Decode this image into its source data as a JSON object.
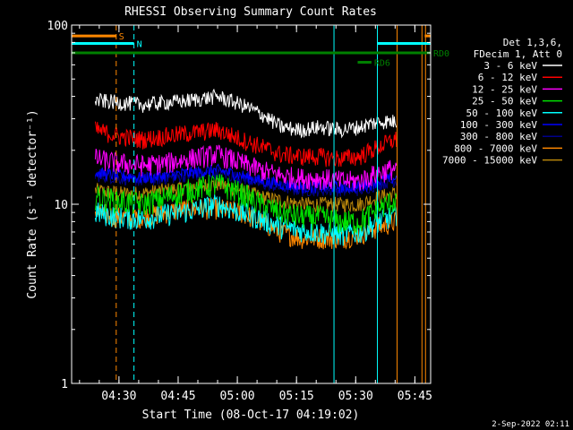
{
  "chart_data": {
    "type": "line",
    "title": "RHESSI Observing Summary Count Rates",
    "xlabel": "Start Time (08-Oct-17 04:19:02)",
    "ylabel": "Count Rate (s⁻¹ detector⁻¹)",
    "y_scale": "log",
    "ylim": [
      1,
      100
    ],
    "y_ticks": [
      {
        "value": 1,
        "label": "1"
      },
      {
        "value": 10,
        "label": "10"
      },
      {
        "value": 100,
        "label": "100"
      }
    ],
    "xlim_minutes": [
      0,
      91
    ],
    "x_ticks": [
      {
        "minute": 12,
        "label": "04:30"
      },
      {
        "minute": 27,
        "label": "04:45"
      },
      {
        "minute": 42,
        "label": "05:00"
      },
      {
        "minute": 57,
        "label": "05:15"
      },
      {
        "minute": 72,
        "label": "05:30"
      },
      {
        "minute": 87,
        "label": "05:45"
      }
    ],
    "x_minor_every_minutes": 5,
    "data_end_minute": 82.5,
    "legend_header": [
      "Det 1,3,6,",
      "FDecim 1, Att 0"
    ],
    "series": [
      {
        "name": "3 - 6 keV",
        "color": "#ffffff",
        "noise": 0.1,
        "points": [
          [
            6,
            38
          ],
          [
            12,
            37
          ],
          [
            18,
            36
          ],
          [
            24,
            37
          ],
          [
            30,
            38
          ],
          [
            37,
            40
          ],
          [
            43,
            36
          ],
          [
            48,
            32
          ],
          [
            53,
            27
          ],
          [
            58,
            26
          ],
          [
            63,
            27
          ],
          [
            68,
            26
          ],
          [
            73,
            27
          ],
          [
            78,
            29
          ],
          [
            82,
            29
          ]
        ]
      },
      {
        "name": "6 - 12 keV",
        "color": "#ff0000",
        "noise": 0.12,
        "points": [
          [
            6,
            26
          ],
          [
            12,
            24
          ],
          [
            18,
            23
          ],
          [
            24,
            24
          ],
          [
            30,
            25
          ],
          [
            37,
            26
          ],
          [
            43,
            23
          ],
          [
            48,
            21
          ],
          [
            53,
            19
          ],
          [
            58,
            18.5
          ],
          [
            63,
            18.5
          ],
          [
            68,
            18
          ],
          [
            73,
            18.5
          ],
          [
            78,
            21
          ],
          [
            82,
            23
          ]
        ]
      },
      {
        "name": "12 - 25 keV",
        "color": "#ff00ff",
        "noise": 0.14,
        "points": [
          [
            6,
            18
          ],
          [
            12,
            17
          ],
          [
            18,
            16.5
          ],
          [
            24,
            17
          ],
          [
            30,
            18
          ],
          [
            37,
            19
          ],
          [
            43,
            17
          ],
          [
            48,
            15.5
          ],
          [
            53,
            14.5
          ],
          [
            58,
            14
          ],
          [
            63,
            14
          ],
          [
            68,
            13.5
          ],
          [
            73,
            13.5
          ],
          [
            78,
            15
          ],
          [
            82,
            16
          ]
        ]
      },
      {
        "name": "25 - 50 keV",
        "color": "#00e000",
        "noise": 0.16,
        "points": [
          [
            6,
            11
          ],
          [
            12,
            10.5
          ],
          [
            18,
            10
          ],
          [
            24,
            11
          ],
          [
            30,
            12
          ],
          [
            37,
            13
          ],
          [
            43,
            11.5
          ],
          [
            48,
            10
          ],
          [
            53,
            9
          ],
          [
            58,
            8.5
          ],
          [
            63,
            8.5
          ],
          [
            68,
            8
          ],
          [
            73,
            8
          ],
          [
            78,
            9.5
          ],
          [
            82,
            10.5
          ]
        ]
      },
      {
        "name": "50 - 100 keV",
        "color": "#00ffff",
        "noise": 0.15,
        "points": [
          [
            6,
            9
          ],
          [
            12,
            8.5
          ],
          [
            18,
            8.3
          ],
          [
            24,
            8.8
          ],
          [
            30,
            9.2
          ],
          [
            37,
            10
          ],
          [
            43,
            9
          ],
          [
            48,
            8.3
          ],
          [
            53,
            7.5
          ],
          [
            58,
            7.2
          ],
          [
            63,
            7
          ],
          [
            68,
            6.8
          ],
          [
            73,
            7
          ],
          [
            78,
            8
          ],
          [
            82,
            8.7
          ]
        ]
      },
      {
        "name": "100 - 300 keV",
        "color": "#0000ff",
        "noise": 0.08,
        "points": [
          [
            6,
            15
          ],
          [
            12,
            14.5
          ],
          [
            18,
            14
          ],
          [
            24,
            14.5
          ],
          [
            30,
            15
          ],
          [
            37,
            15.5
          ],
          [
            43,
            14.5
          ],
          [
            48,
            13.5
          ],
          [
            53,
            13
          ],
          [
            58,
            12.5
          ],
          [
            63,
            12.5
          ],
          [
            68,
            12.5
          ],
          [
            73,
            12.5
          ],
          [
            78,
            13.5
          ],
          [
            82,
            14
          ]
        ]
      },
      {
        "name": "300 - 800 keV",
        "color": "#00008b",
        "noise": 0.08,
        "points": [
          [
            6,
            14.5
          ],
          [
            12,
            14
          ],
          [
            18,
            13.5
          ],
          [
            24,
            14
          ],
          [
            30,
            14.5
          ],
          [
            37,
            15
          ],
          [
            43,
            14
          ],
          [
            48,
            13
          ],
          [
            53,
            12.5
          ],
          [
            58,
            12
          ],
          [
            63,
            12
          ],
          [
            68,
            12
          ],
          [
            73,
            12
          ],
          [
            78,
            13
          ],
          [
            82,
            13.5
          ]
        ]
      },
      {
        "name": "800 - 7000 keV",
        "color": "#ff8800",
        "noise": 0.14,
        "points": [
          [
            6,
            9
          ],
          [
            12,
            8.5
          ],
          [
            18,
            8.5
          ],
          [
            24,
            9
          ],
          [
            30,
            9.5
          ],
          [
            37,
            9.5
          ],
          [
            43,
            9
          ],
          [
            48,
            8
          ],
          [
            53,
            7
          ],
          [
            58,
            6.5
          ],
          [
            63,
            6.5
          ],
          [
            68,
            6.5
          ],
          [
            73,
            6.8
          ],
          [
            78,
            7.5
          ],
          [
            82,
            8
          ]
        ]
      },
      {
        "name": "7000 - 15000 keV",
        "color": "#b8860b",
        "noise": 0.1,
        "points": [
          [
            6,
            12
          ],
          [
            12,
            11.5
          ],
          [
            18,
            11.5
          ],
          [
            24,
            12
          ],
          [
            30,
            12.5
          ],
          [
            37,
            13
          ],
          [
            43,
            12
          ],
          [
            48,
            11
          ],
          [
            53,
            10.5
          ],
          [
            58,
            10
          ],
          [
            63,
            10
          ],
          [
            68,
            10
          ],
          [
            73,
            10
          ],
          [
            78,
            11
          ],
          [
            82,
            11.5
          ]
        ]
      }
    ],
    "vertical_markers": [
      {
        "minute": 0,
        "color": "#00ffff",
        "style": "solid"
      },
      {
        "minute": 11.3,
        "color": "#ff8800",
        "style": "dashed"
      },
      {
        "minute": 15.8,
        "color": "#00ffff",
        "style": "dashed"
      },
      {
        "minute": 66.5,
        "color": "#00ffff",
        "style": "solid"
      },
      {
        "minute": 77.5,
        "color": "#00ffff",
        "style": "solid"
      },
      {
        "minute": 82.5,
        "color": "#ff8800",
        "style": "solid"
      },
      {
        "minute": 88.8,
        "color": "#ff8800",
        "style": "solid"
      },
      {
        "minute": 89.7,
        "color": "#ff8800",
        "style": "solid"
      }
    ],
    "flags": [
      {
        "label": "S",
        "color": "#ff8800",
        "from": 0,
        "to": 11.3,
        "y": 87
      },
      {
        "label": "N",
        "color": "#00ffff",
        "from": 0,
        "to": 15.8,
        "y": 79
      },
      {
        "label": "",
        "color": "#00ffff",
        "from": 77.5,
        "to": 91,
        "y": 79
      },
      {
        "label": "",
        "color": "#ff8800",
        "from": 89.5,
        "to": 91,
        "y": 87
      },
      {
        "label": "RD0",
        "color": "#008000",
        "from": 0,
        "to": 91,
        "y": 70
      },
      {
        "label": "RD6",
        "color": "#008000",
        "from": 72.5,
        "to": 76,
        "y": 62
      }
    ]
  },
  "footer": {
    "timestamp": "2-Sep-2022 02:11"
  }
}
